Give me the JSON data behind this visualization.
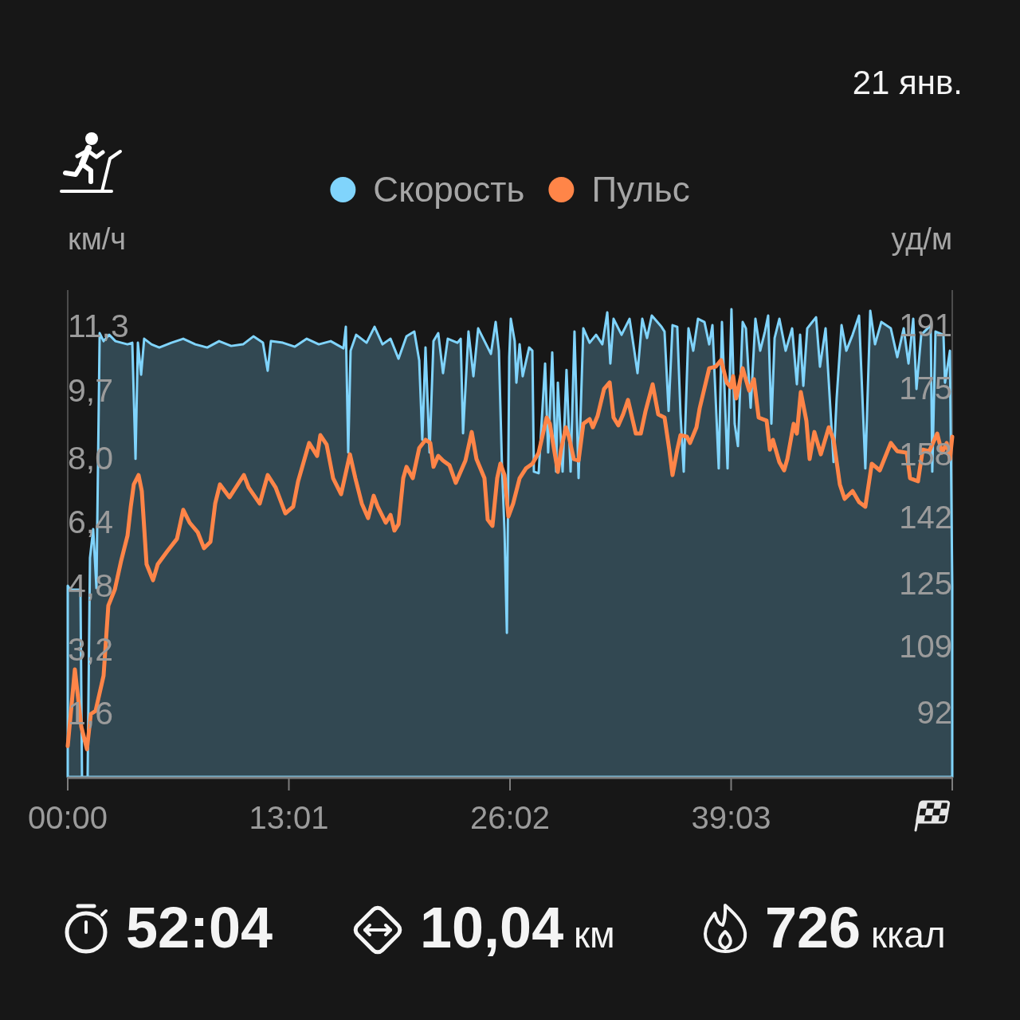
{
  "chart_data": {
    "type": "line",
    "annotations": [
      "21 янв.",
      "52:04",
      "10,04 км",
      "726 ккал"
    ],
    "ylabel": "км/ч",
    "y2label": "уд/м",
    "legend": "top",
    "xlim": [
      0,
      52.067
    ],
    "xticks": [
      {
        "value": 0,
        "label": "00:00"
      },
      {
        "value": 13.017,
        "label": "13:01"
      },
      {
        "value": 26.033,
        "label": "26:02"
      },
      {
        "value": 39.05,
        "label": "39:03"
      },
      {
        "value": 52.067,
        "label": null
      }
    ],
    "ylim": [
      0,
      12.2
    ],
    "yticks": [
      {
        "value": 1.6,
        "label": "1,6"
      },
      {
        "value": 3.2,
        "label": "3,2"
      },
      {
        "value": 4.8,
        "label": "4,8"
      },
      {
        "value": 6.4,
        "label": "6,4"
      },
      {
        "value": 8.0,
        "label": "8,0"
      },
      {
        "value": 9.7,
        "label": "9,7"
      },
      {
        "value": 11.3,
        "label": "11,3"
      }
    ],
    "y2lim": [
      75.5,
      200
    ],
    "y2ticks": [
      92,
      109,
      125,
      142,
      158,
      175,
      191
    ],
    "series": [
      {
        "name": "Скорость",
        "type": "area",
        "color": "#80d4fc",
        "x": [
          0,
          0.14,
          0.75,
          0.84,
          1.17,
          1.31,
          1.5,
          1.69,
          1.88,
          2.11,
          2.44,
          2.81,
          3.52,
          3.8,
          3.99,
          4.13,
          4.32,
          4.5,
          4.93,
          5.39,
          6.1,
          6.8,
          7.51,
          8.21,
          8.91,
          9.62,
          10.32,
          10.93,
          11.49,
          11.77,
          11.96,
          12.66,
          13.37,
          14.07,
          14.78,
          15.48,
          16.23,
          16.37,
          16.51,
          16.65,
          16.98,
          17.59,
          18.06,
          18.53,
          19,
          19.47,
          19.94,
          20.4,
          20.69,
          20.87,
          21.06,
          21.3,
          21.53,
          21.81,
          22.09,
          22.37,
          22.94,
          23.13,
          23.27,
          23.59,
          23.88,
          24.16,
          24.63,
          24.91,
          25.19,
          25.38,
          25.56,
          25.71,
          25.85,
          25.99,
          26.08,
          26.31,
          26.41,
          26.6,
          26.78,
          27.16,
          27.35,
          27.44,
          27.72,
          28.1,
          28.28,
          28.52,
          28.75,
          28.85,
          29.13,
          29.36,
          29.6,
          29.83,
          30.07,
          30.35,
          30.72,
          31.1,
          31.47,
          31.76,
          31.94,
          32.13,
          32.6,
          33.07,
          33.35,
          33.54,
          33.82,
          34.1,
          34.38,
          34.95,
          35.13,
          35.37,
          35.6,
          35.88,
          36.07,
          36.26,
          36.54,
          36.82,
          37.1,
          37.48,
          37.76,
          37.95,
          38.32,
          38.51,
          38.84,
          39.07,
          39.26,
          39.45,
          39.73,
          39.92,
          40.2,
          40.48,
          40.76,
          41.04,
          41.23,
          41.42,
          41.61,
          41.89,
          42.26,
          42.64,
          42.92,
          43.11,
          43.3,
          43.53,
          44.05,
          44.28,
          44.61,
          45.08,
          45.26,
          45.55,
          45.83,
          46.2,
          46.58,
          46.95,
          47.24,
          47.52,
          47.89,
          48.45,
          48.83,
          49.21,
          49.49,
          49.77,
          49.96,
          50.24,
          50.8,
          50.89,
          51.08,
          51.55,
          51.64,
          51.93,
          52.067
        ],
        "values": [
          4.79,
          4.69,
          4.69,
          0,
          0,
          5.49,
          6.21,
          4.73,
          11.12,
          10.92,
          11.08,
          10.92,
          10.84,
          10.88,
          7.97,
          10.88,
          10.08,
          10.98,
          10.84,
          10.76,
          10.88,
          10.98,
          10.84,
          10.76,
          10.92,
          10.8,
          10.84,
          11.04,
          10.88,
          10.18,
          10.92,
          10.88,
          10.78,
          10.98,
          10.84,
          10.92,
          10.74,
          11.28,
          8.13,
          10.68,
          11.08,
          10.88,
          11.28,
          10.84,
          10.98,
          10.48,
          11.04,
          11.16,
          10.44,
          8.45,
          10.76,
          8.13,
          10.92,
          11.12,
          10.12,
          10.98,
          10.88,
          10.98,
          8.61,
          11.16,
          10.04,
          11.24,
          10.84,
          10.6,
          11.4,
          10.68,
          7.81,
          6.17,
          3.61,
          10.52,
          11.48,
          10.92,
          9.88,
          10.84,
          10.04,
          10.76,
          10.68,
          7.65,
          7.61,
          10.36,
          8.13,
          10.64,
          7.65,
          9.88,
          7.65,
          10.2,
          7.65,
          11.16,
          7.49,
          11.24,
          10.88,
          11.08,
          10.84,
          11.64,
          10.36,
          11.48,
          11.08,
          11.48,
          10.68,
          10.12,
          11.48,
          11,
          11.56,
          11.28,
          11.16,
          9.17,
          11.32,
          11.28,
          9.09,
          7.65,
          11.24,
          10.68,
          11.48,
          11.4,
          10.84,
          11.32,
          7.73,
          11.4,
          7.73,
          11.72,
          8.85,
          8.29,
          11.4,
          11.24,
          9.25,
          11.48,
          10.68,
          11.16,
          11.56,
          8.85,
          11,
          11.48,
          10.68,
          11.24,
          9.84,
          11.08,
          9.8,
          11.24,
          11.52,
          10.28,
          11.24,
          7.89,
          9.48,
          11.32,
          10.68,
          11.08,
          11.56,
          7.73,
          11.68,
          10.84,
          11.4,
          11.24,
          10.52,
          11.24,
          10.36,
          11.48,
          9.72,
          11.08,
          11.32,
          7.65,
          11.16,
          11.08,
          9.88,
          10.68,
          4.81
        ]
      },
      {
        "name": "Пульс",
        "color": "#ff8548",
        "axis": "y2",
        "x": [
          0,
          0.42,
          0.8,
          1.13,
          1.36,
          1.64,
          2.11,
          2.39,
          2.77,
          3.14,
          3.52,
          3.71,
          3.89,
          4.17,
          4.36,
          4.64,
          5.02,
          5.3,
          5.86,
          6.43,
          6.8,
          7.18,
          7.65,
          8.02,
          8.4,
          8.68,
          8.96,
          9.52,
          10.37,
          10.65,
          11.3,
          11.77,
          12.24,
          12.81,
          13.27,
          13.56,
          14.21,
          14.68,
          14.87,
          15.24,
          15.62,
          16.09,
          16.61,
          16.93,
          17.31,
          17.68,
          18.01,
          18.25,
          18.72,
          19,
          19.23,
          19.47,
          19.75,
          19.94,
          20.31,
          20.69,
          21.06,
          21.34,
          21.53,
          21.81,
          22.09,
          22.47,
          22.84,
          23.41,
          23.78,
          24.06,
          24.53,
          24.72,
          25,
          25.28,
          25.47,
          25.71,
          25.94,
          26.22,
          26.6,
          26.97,
          27.35,
          27.72,
          28.19,
          28.38,
          28.66,
          28.85,
          29.04,
          29.32,
          29.5,
          29.79,
          30.07,
          30.35,
          30.72,
          30.91,
          31.19,
          31.57,
          31.9,
          32.13,
          32.41,
          32.69,
          32.98,
          33.44,
          33.73,
          34.01,
          34.43,
          34.76,
          35.13,
          35.41,
          35.6,
          35.88,
          36.07,
          36.45,
          36.63,
          37.01,
          37.2,
          37.76,
          38.14,
          38.46,
          38.79,
          39.03,
          39.17,
          39.35,
          39.73,
          40.11,
          40.39,
          40.67,
          41.14,
          41.33,
          41.51,
          41.89,
          42.17,
          42.36,
          42.73,
          42.92,
          43.15,
          43.48,
          43.67,
          43.95,
          44.33,
          44.8,
          45.08,
          45.45,
          45.73,
          46.2,
          46.58,
          46.95,
          47.33,
          47.8,
          48.45,
          48.83,
          49.39,
          49.58,
          50.05,
          50.33,
          50.71,
          51.18,
          51.46,
          51.74,
          51.93,
          52.067
        ],
        "values": [
          83.4,
          103,
          88.3,
          82.6,
          91.6,
          92.4,
          101.4,
          119.3,
          123.4,
          130.7,
          137.2,
          144.6,
          150.3,
          152.7,
          148.6,
          129.9,
          125.8,
          129.9,
          133.2,
          136.4,
          143.8,
          140.5,
          138.1,
          134,
          135.6,
          145.4,
          150.3,
          147,
          152.7,
          149.5,
          145.4,
          152.7,
          149.5,
          142.9,
          144.6,
          151.1,
          160.9,
          157.6,
          162.9,
          160.5,
          151.9,
          147.8,
          158,
          151.9,
          145.4,
          141.7,
          147.4,
          144.6,
          140.5,
          142.5,
          138.5,
          140.1,
          151.9,
          154.8,
          151.9,
          159.6,
          161.7,
          160.9,
          154.8,
          157.6,
          156.4,
          155.2,
          150.7,
          156.4,
          163.7,
          156.8,
          151.9,
          141.3,
          139.7,
          151.9,
          155.6,
          152.7,
          142.1,
          145.4,
          151.9,
          154.4,
          155.6,
          158.4,
          167.4,
          165.8,
          158.4,
          153.5,
          159.2,
          164.9,
          162.5,
          156.8,
          156.4,
          165.8,
          167,
          164.9,
          167.8,
          174.7,
          176.4,
          167.4,
          165.4,
          168.2,
          171.9,
          163.3,
          163.3,
          169,
          175.9,
          168.2,
          167.4,
          159.2,
          152.7,
          159.2,
          162.9,
          162.5,
          160.9,
          164.9,
          169.8,
          180,
          180.4,
          182.1,
          176.4,
          175.1,
          178,
          172.3,
          180,
          174.3,
          177.2,
          167.4,
          166.6,
          159.2,
          161.7,
          156,
          153.9,
          156.8,
          165.8,
          163.3,
          173.9,
          166.6,
          156.8,
          163.7,
          158,
          164.9,
          161.7,
          150.3,
          146.6,
          148.6,
          145.8,
          144.6,
          155.6,
          153.9,
          160.9,
          158.8,
          158.4,
          151.9,
          151.1,
          159.2,
          158.8,
          163.3,
          158.4,
          160.9,
          156.8,
          162.5
        ]
      }
    ]
  }
}
